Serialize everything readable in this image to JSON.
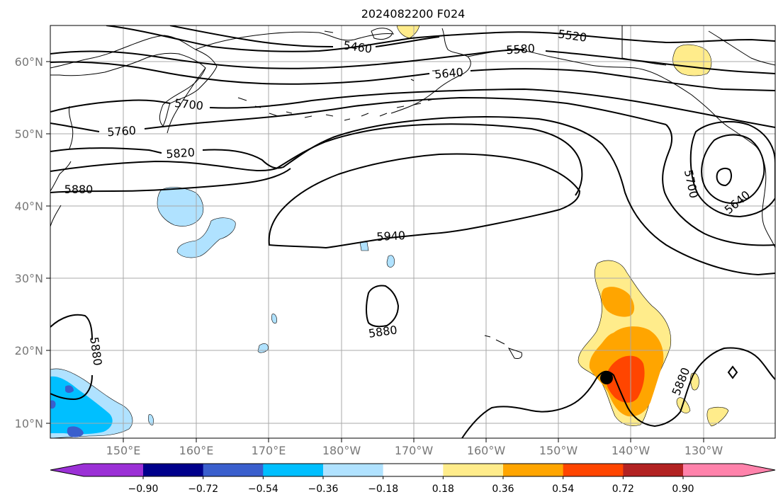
{
  "title": "2024082200 F024",
  "lon_labels": [
    "150°E",
    "160°E",
    "170°E",
    "180°W",
    "170°W",
    "160°W",
    "150°W",
    "140°W",
    "130°W"
  ],
  "lat_labels": [
    "60°N",
    "50°N",
    "40°N",
    "30°N",
    "20°N",
    "10°N"
  ],
  "contour_labels": {
    "c5520": "5520",
    "c5580": "5580",
    "c5640": "5640",
    "c5460": "5460",
    "c5700": "5700",
    "c5760": "5760",
    "c5820": "5820",
    "c5880": "5880",
    "c5940": "5940",
    "c5880b": "5880",
    "c5880c": "5880",
    "c5880d": "5880",
    "c5700b": "5700",
    "c5640b": "5640"
  },
  "colorbar": {
    "ticks": [
      "−0.90",
      "−0.72",
      "−0.54",
      "−0.36",
      "−0.18",
      "0.18",
      "0.36",
      "0.54",
      "0.72",
      "0.90"
    ],
    "colors": [
      "#9b30d6",
      "#00008b",
      "#3a5fcd",
      "#00bfff",
      "#b0e2ff",
      "#ffffff",
      "#ffec8b",
      "#ffa500",
      "#ff4500",
      "#b22222",
      "#ff82ab"
    ]
  },
  "fill_colors": {
    "cyan_light": "#b0e2ff",
    "cyan": "#00bfff",
    "royal": "#3a5fcd",
    "yellow": "#ffec8b",
    "orange": "#ffa500",
    "red": "#ff4500"
  }
}
